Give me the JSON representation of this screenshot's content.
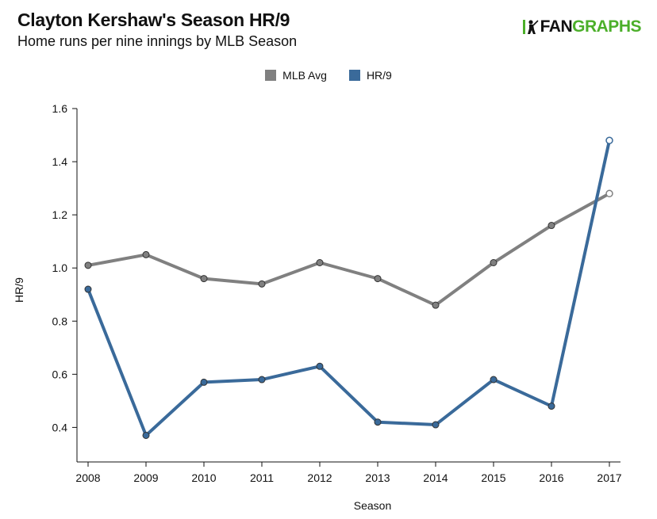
{
  "header": {
    "title": "Clayton Kershaw's Season HR/9",
    "subtitle": "Home runs per nine innings by MLB Season",
    "logo_fan": "FAN",
    "logo_graphs": "GRAPHS"
  },
  "colors": {
    "mlb_avg": "#808080",
    "hr9": "#3a6a9a",
    "brand_green": "#4caf2a"
  },
  "chart_data": {
    "type": "line",
    "x": [
      2008,
      2009,
      2010,
      2011,
      2012,
      2013,
      2014,
      2015,
      2016,
      2017
    ],
    "x_tick_labels": [
      "2008",
      "2009",
      "2010",
      "2011",
      "2012",
      "2013",
      "2014",
      "2015",
      "2016",
      "2017"
    ],
    "y_ticks": [
      0.4,
      0.6,
      0.8,
      1.0,
      1.2,
      1.4,
      1.6
    ],
    "y_tick_labels": [
      "0.4",
      "0.6",
      "0.8",
      "1.0",
      "1.2",
      "1.4",
      "1.6"
    ],
    "ylim": [
      0.27,
      1.6
    ],
    "xlabel": "Season",
    "ylabel": "HR/9",
    "legend_position": "top-center",
    "series": [
      {
        "name": "MLB Avg",
        "color": "#808080",
        "values": [
          1.01,
          1.05,
          0.96,
          0.94,
          1.02,
          0.96,
          0.86,
          1.02,
          1.16,
          1.28
        ]
      },
      {
        "name": "HR/9",
        "color": "#3a6a9a",
        "values": [
          0.92,
          0.37,
          0.57,
          0.58,
          0.63,
          0.42,
          0.41,
          0.58,
          0.48,
          1.48
        ]
      }
    ]
  }
}
